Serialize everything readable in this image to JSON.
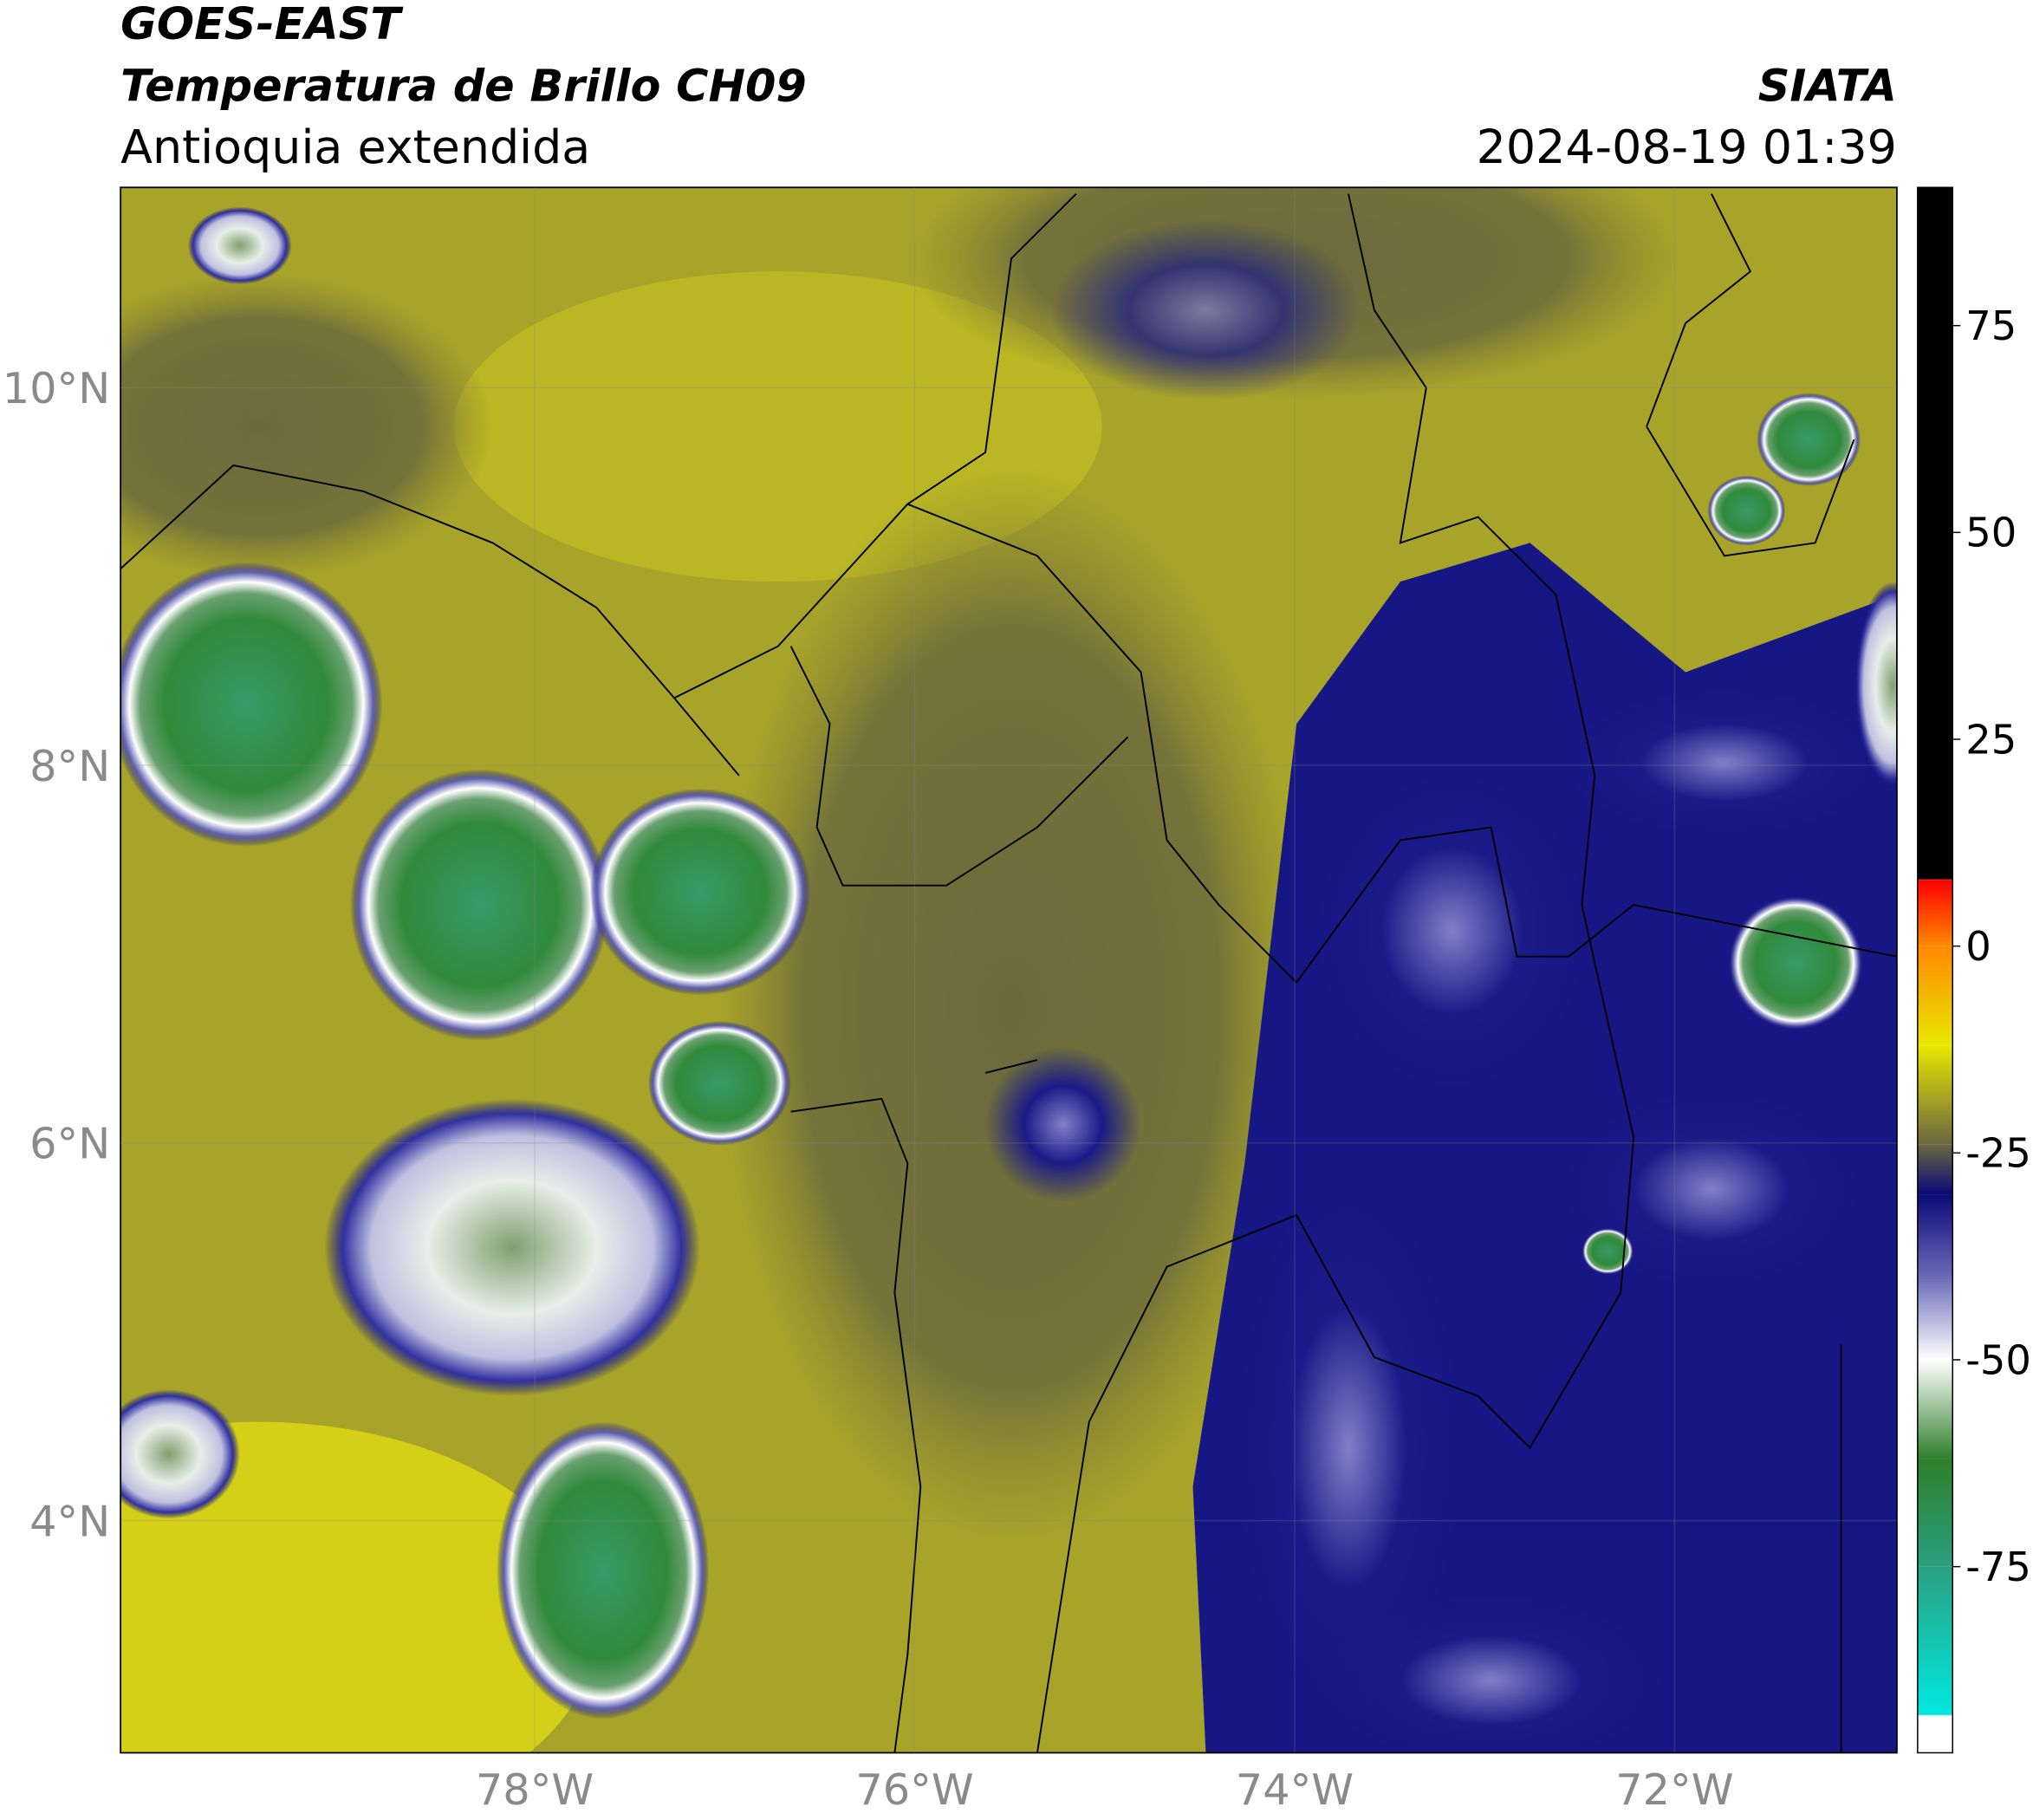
{
  "map": {
    "title_line1": "GOES-EAST",
    "title_line2": "Temperatura de Brillo CH09",
    "subtitle": "Antioquia extendida",
    "source": "SIATA",
    "datetime": "2024-08-19 01:39",
    "xlim": [
      -80.18,
      -70.83
    ],
    "ylim": [
      2.77,
      11.06
    ],
    "xticks": [
      {
        "value": -78,
        "label": "78°W"
      },
      {
        "value": -76,
        "label": "76°W"
      },
      {
        "value": -74,
        "label": "74°W"
      },
      {
        "value": -72,
        "label": "72°W"
      }
    ],
    "yticks": [
      {
        "value": 4,
        "label": "4°N"
      },
      {
        "value": 6,
        "label": "6°N"
      },
      {
        "value": 8,
        "label": "8°N"
      },
      {
        "value": 10,
        "label": "10°N"
      }
    ],
    "colorbar": {
      "lim": [
        -97.5,
        91.7
      ],
      "ticks": [
        -75,
        -50,
        -25,
        0,
        25,
        50,
        75
      ],
      "colormap": [
        {
          "value": -97.5,
          "color": "#ffffff"
        },
        {
          "value": -93,
          "color": "#ffffff"
        },
        {
          "value": -92.9,
          "color": "#00e8e0"
        },
        {
          "value": -75,
          "color": "#2aa080"
        },
        {
          "value": -62,
          "color": "#2f7f2a"
        },
        {
          "value": -50,
          "color": "#ffffff"
        },
        {
          "value": -40,
          "color": "#6a6ab8"
        },
        {
          "value": -30,
          "color": "#0a0a78"
        },
        {
          "value": -24,
          "color": "#6a6640"
        },
        {
          "value": -12,
          "color": "#e8e800"
        },
        {
          "value": 0,
          "color": "#ff8800"
        },
        {
          "value": 8,
          "color": "#ff0000"
        },
        {
          "value": 8.1,
          "color": "#000000"
        },
        {
          "value": 91.7,
          "color": "#000000"
        }
      ]
    }
  }
}
